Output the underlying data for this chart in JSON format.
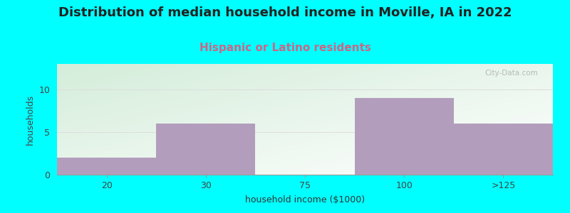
{
  "title": "Distribution of median household income in Moville, IA in 2022",
  "subtitle": "Hispanic or Latino residents",
  "xlabel": "household income ($1000)",
  "ylabel": "households",
  "categories": [
    "20",
    "30",
    "75",
    "100",
    ">125"
  ],
  "values": [
    2,
    6,
    0,
    9,
    6
  ],
  "bar_color": "#b39dbc",
  "background_color": "#00ffff",
  "plot_bg_topleft": "#d4edda",
  "plot_bg_bottomright": "#ffffff",
  "yticks": [
    0,
    5,
    10
  ],
  "ylim": [
    0,
    13
  ],
  "title_fontsize": 13,
  "subtitle_fontsize": 11,
  "subtitle_color": "#cc6688",
  "axis_label_fontsize": 9,
  "tick_fontsize": 9,
  "watermark": "City-Data.com"
}
